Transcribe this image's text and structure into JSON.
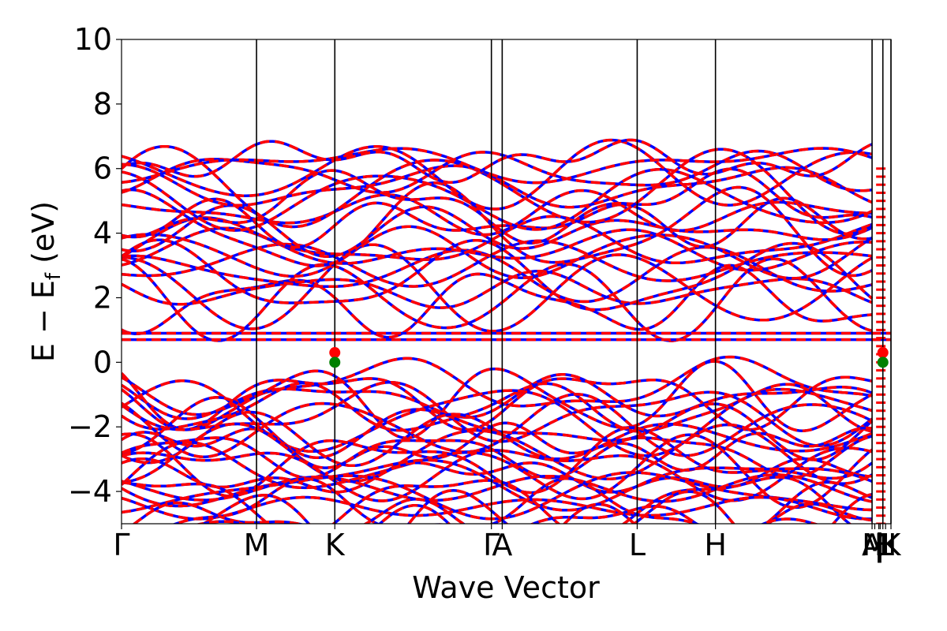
{
  "chart_data": {
    "type": "line",
    "title": "",
    "xlabel": "Wave Vector",
    "ylabel": "E − E",
    "ylabel_sub": "f",
    "ylabel_unit": " (eV)",
    "ylim": [
      -5,
      10
    ],
    "yticks": [
      -4,
      -2,
      0,
      2,
      4,
      6,
      8,
      10
    ],
    "ytick_labels": [
      "−4",
      "−2",
      "0",
      "2",
      "4",
      "6",
      "8",
      "10"
    ],
    "xlim": [
      0,
      5.7
    ],
    "kpoints": [
      {
        "label": "Γ",
        "x": 0.0
      },
      {
        "label": "M",
        "x": 1.0
      },
      {
        "label": "K",
        "x": 1.58
      },
      {
        "label": "Γ",
        "x": 2.74
      },
      {
        "label": "A",
        "x": 2.82
      },
      {
        "label": "L",
        "x": 3.82
      },
      {
        "label": "H",
        "x": 4.4
      },
      {
        "label": "A",
        "x": 5.56
      },
      {
        "label": "L",
        "x": 5.64
      },
      {
        "label": "M",
        "x": 5.58
      },
      {
        "label": "|",
        "x": 5.61
      },
      {
        "label": "H",
        "x": 5.66
      },
      {
        "label": "|",
        "x": 5.62
      },
      {
        "label": "K",
        "x": 5.7
      }
    ],
    "band_lines_x": [
      1.0,
      1.58,
      2.74,
      2.82,
      3.82,
      4.4,
      5.56,
      5.64,
      5.7
    ],
    "series": [
      {
        "name": "",
        "color": "#0000ff",
        "style": "solid"
      },
      {
        "name": "",
        "color": "#ff0000",
        "style": "dashed"
      }
    ],
    "flat_bands": [
      0.7,
      0.9
    ],
    "markers": [
      {
        "x": 1.58,
        "y": 0.3,
        "color": "#ff0000"
      },
      {
        "x": 1.58,
        "y": 0.0,
        "color": "#008000"
      },
      {
        "x": 5.64,
        "y": 0.3,
        "color": "#ff0000"
      },
      {
        "x": 5.64,
        "y": 0.0,
        "color": "#008000"
      }
    ]
  }
}
